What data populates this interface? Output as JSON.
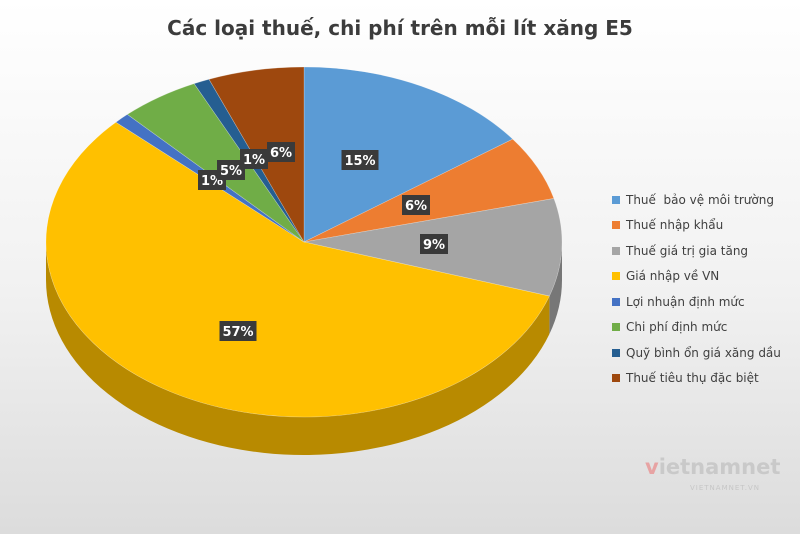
{
  "chart_data": {
    "type": "pie",
    "title": "Các loại thuế, chi phí trên mỗi lít xăng E5",
    "legend_position": "right",
    "labels": [
      "Thuế  bảo vệ môi trường",
      "Thuế nhập khẩu",
      "Thuế giá trị gia tăng",
      "Giá nhập về VN",
      "Lợi nhuận định mức",
      "Chi phí định mức",
      "Quỹ bình ổn giá xăng dầu",
      "Thuế tiêu thụ đặc biệt"
    ],
    "values": [
      15,
      6,
      9,
      57,
      1,
      5,
      1,
      6
    ],
    "value_labels": [
      "15%",
      "6%",
      "9%",
      "57%",
      "1%",
      "5%",
      "1%",
      "6%"
    ],
    "colors": [
      "#5b9bd5",
      "#ed7d31",
      "#a5a5a5",
      "#ffc000",
      "#4472c4",
      "#70ad47",
      "#255e91",
      "#9e480e"
    ]
  },
  "watermark": {
    "brand_mark": "v",
    "brand_text": "ietnamnet",
    "domain": "VIETNAMNET.VN"
  }
}
